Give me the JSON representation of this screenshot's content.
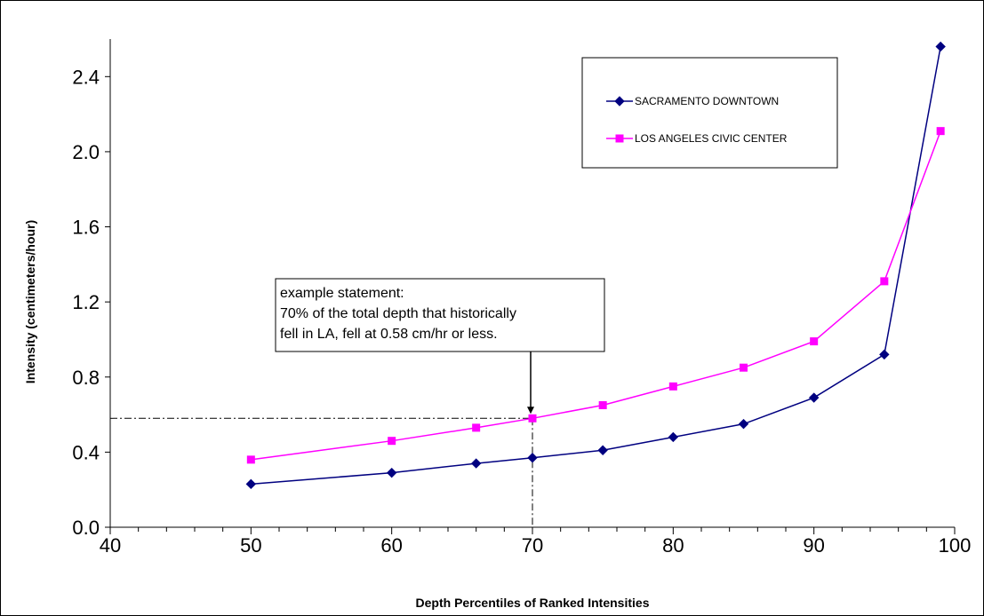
{
  "chart_data": {
    "type": "line",
    "xlabel": "Depth Percentiles of Ranked Intensities",
    "ylabel": "Intensity (centimeters/hour)",
    "xlim": [
      40,
      100
    ],
    "ylim": [
      0,
      2.4
    ],
    "x_ticks": [
      40,
      50,
      60,
      70,
      80,
      90,
      100
    ],
    "y_ticks": [
      0.0,
      0.4,
      0.8,
      1.2,
      1.6,
      2.0,
      2.4
    ],
    "x_minor_step": 2,
    "grid": false,
    "legend_position": "top-right",
    "series": [
      {
        "name": "SACRAMENTO DOWNTOWN",
        "color": "#000080",
        "marker": "diamond",
        "x": [
          50,
          60,
          66,
          70,
          75,
          80,
          85,
          90,
          95,
          99
        ],
        "values": [
          0.23,
          0.29,
          0.34,
          0.37,
          0.41,
          0.48,
          0.55,
          0.69,
          0.92,
          2.56
        ]
      },
      {
        "name": "LOS ANGELES CIVIC CENTER",
        "color": "#ff00ff",
        "marker": "square",
        "x": [
          50,
          60,
          66,
          70,
          75,
          80,
          85,
          90,
          95,
          99
        ],
        "values": [
          0.36,
          0.46,
          0.53,
          0.58,
          0.65,
          0.75,
          0.85,
          0.99,
          1.31,
          2.11
        ]
      }
    ],
    "annotation": {
      "lines": [
        "example statement:",
        "70% of the total depth that historically",
        "fell in LA, fell at 0.58 cm/hr or less."
      ],
      "target_x": 70,
      "target_y": 0.58
    }
  }
}
